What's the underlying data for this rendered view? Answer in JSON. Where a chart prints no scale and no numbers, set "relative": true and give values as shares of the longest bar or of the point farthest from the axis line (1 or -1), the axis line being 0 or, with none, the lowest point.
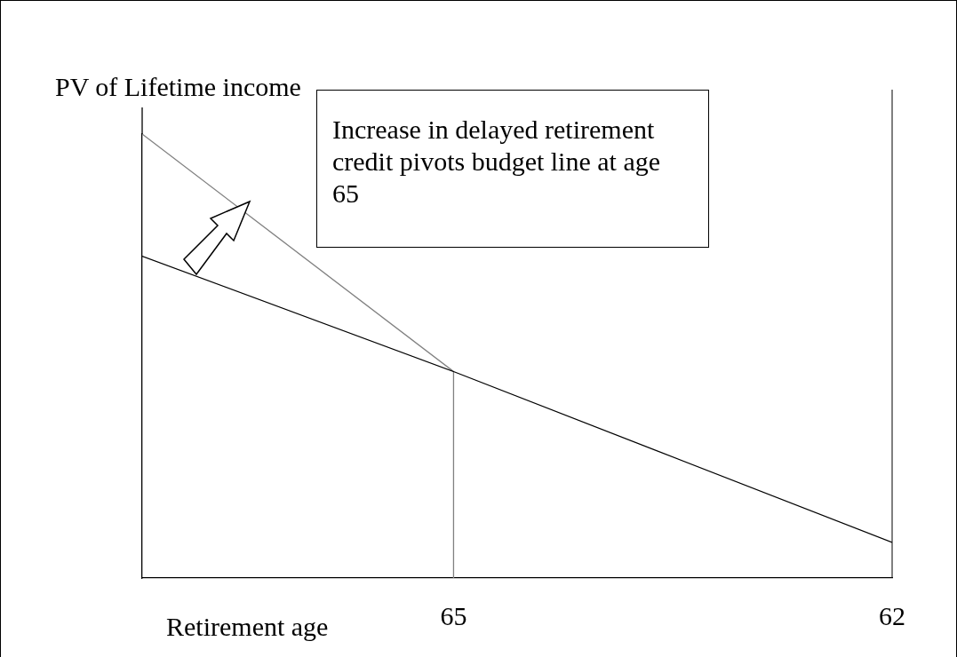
{
  "chart_data": {
    "type": "line",
    "relative": true,
    "ylabel": "PV of Lifetime income",
    "xlabel": "Retirement age",
    "xlim": [
      67.13,
      62
    ],
    "xticks": [
      65,
      62
    ],
    "grid": false,
    "legend": false,
    "marker": "none",
    "line_style": "solid",
    "series": [
      {
        "color": "#000000",
        "x": [
          67.13,
          65,
          62
        ],
        "values": [
          0.725,
          0.465,
          0.08
        ]
      },
      {
        "color": "#808080",
        "x": [
          67.13,
          65
        ],
        "values": [
          1,
          0.465
        ]
      },
      {
        "color": "#808080",
        "x": [
          65,
          65
        ],
        "values": [
          0,
          0.465
        ]
      }
    ],
    "annotations": [
      "Increase in delayed retirement credit pivots budget line at age 65"
    ]
  }
}
